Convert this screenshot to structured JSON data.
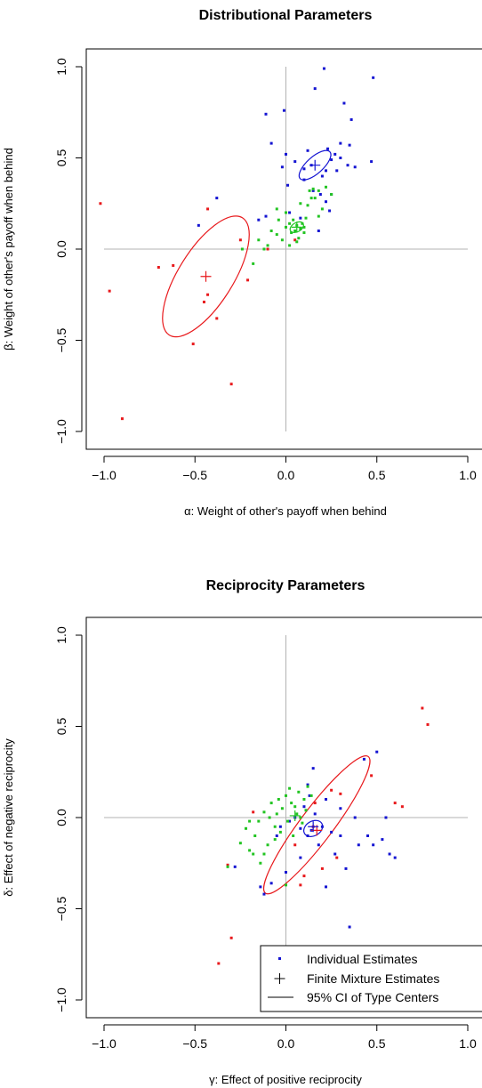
{
  "chart_data": [
    {
      "type": "scatter",
      "title": "Distributional Parameters",
      "xlabel": "α: Weight of other's payoff when behind",
      "ylabel": "β: Weight of other's payoff when behind",
      "xlim": [
        -1.0,
        1.0
      ],
      "ylim": [
        -1.0,
        1.0
      ],
      "xticks": [
        "−1.0",
        "−0.5",
        "0.0",
        "0.5",
        "1.0"
      ],
      "yticks": [
        "−1.0",
        "−0.5",
        "0.0",
        "0.5",
        "1.0"
      ],
      "colors": {
        "red": "#e8191c",
        "blue": "#1414d2",
        "green": "#22c422"
      },
      "reference_lines": {
        "x": 0,
        "y": 0
      },
      "series": [
        {
          "color": "red",
          "points": [
            [
              -1.02,
              0.25
            ],
            [
              -0.97,
              -0.23
            ],
            [
              -0.9,
              -0.93
            ],
            [
              -0.7,
              -0.1
            ],
            [
              -0.62,
              -0.09
            ],
            [
              -0.51,
              -0.52
            ],
            [
              -0.45,
              -0.29
            ],
            [
              -0.43,
              -0.25
            ],
            [
              -0.43,
              0.22
            ],
            [
              -0.38,
              -0.38
            ],
            [
              -0.3,
              -0.74
            ],
            [
              -0.25,
              0.05
            ],
            [
              -0.21,
              -0.17
            ],
            [
              -0.1,
              0.0
            ],
            [
              0.05,
              0.05
            ]
          ]
        },
        {
          "color": "blue",
          "points": [
            [
              -0.48,
              0.13
            ],
            [
              -0.38,
              0.28
            ],
            [
              -0.15,
              0.16
            ],
            [
              -0.11,
              0.18
            ],
            [
              -0.02,
              0.45
            ],
            [
              -0.01,
              0.76
            ],
            [
              0.0,
              0.52
            ],
            [
              0.01,
              0.35
            ],
            [
              0.05,
              0.48
            ],
            [
              0.1,
              0.38
            ],
            [
              0.1,
              0.44
            ],
            [
              0.12,
              0.54
            ],
            [
              0.14,
              0.46
            ],
            [
              0.16,
              0.88
            ],
            [
              0.19,
              0.3
            ],
            [
              0.2,
              0.4
            ],
            [
              0.21,
              0.99
            ],
            [
              0.23,
              0.55
            ],
            [
              0.25,
              0.49
            ],
            [
              0.27,
              0.52
            ],
            [
              0.3,
              0.5
            ],
            [
              0.3,
              0.58
            ],
            [
              0.32,
              0.8
            ],
            [
              0.34,
              0.46
            ],
            [
              0.35,
              0.57
            ],
            [
              0.36,
              0.71
            ],
            [
              0.38,
              0.45
            ],
            [
              0.47,
              0.48
            ],
            [
              0.48,
              0.94
            ],
            [
              -0.11,
              0.74
            ],
            [
              -0.08,
              0.58
            ],
            [
              0.25,
              0.3
            ],
            [
              0.22,
              0.43
            ],
            [
              0.28,
              0.43
            ],
            [
              0.02,
              0.2
            ],
            [
              0.08,
              0.17
            ],
            [
              0.18,
              0.1
            ],
            [
              0.24,
              0.21
            ],
            [
              0.22,
              0.26
            ],
            [
              0.15,
              0.32
            ]
          ]
        },
        {
          "color": "green",
          "points": [
            [
              -0.24,
              0.0
            ],
            [
              -0.18,
              -0.08
            ],
            [
              -0.15,
              0.05
            ],
            [
              -0.12,
              0.0
            ],
            [
              -0.08,
              0.1
            ],
            [
              -0.05,
              0.22
            ],
            [
              -0.04,
              0.16
            ],
            [
              -0.02,
              0.05
            ],
            [
              0.0,
              0.12
            ],
            [
              0.02,
              0.14
            ],
            [
              0.03,
              0.09
            ],
            [
              0.04,
              0.16
            ],
            [
              0.05,
              0.1
            ],
            [
              0.06,
              0.13
            ],
            [
              0.07,
              0.06
            ],
            [
              0.08,
              0.11
            ],
            [
              0.09,
              0.14
            ],
            [
              0.1,
              0.09
            ],
            [
              0.11,
              0.17
            ],
            [
              0.12,
              0.24
            ],
            [
              0.13,
              0.32
            ],
            [
              0.14,
              0.28
            ],
            [
              0.15,
              0.33
            ],
            [
              0.16,
              0.28
            ],
            [
              0.18,
              0.32
            ],
            [
              0.2,
              0.22
            ],
            [
              0.22,
              0.34
            ],
            [
              0.25,
              0.3
            ],
            [
              0.02,
              0.02
            ],
            [
              0.06,
              0.04
            ],
            [
              0.1,
              0.12
            ],
            [
              -0.1,
              0.02
            ],
            [
              0.0,
              0.2
            ],
            [
              0.18,
              0.18
            ],
            [
              0.08,
              0.25
            ],
            [
              -0.05,
              0.08
            ]
          ]
        }
      ],
      "mixture_estimates": [
        {
          "color": "red",
          "x": -0.44,
          "y": -0.15
        },
        {
          "color": "blue",
          "x": 0.16,
          "y": 0.46
        },
        {
          "color": "green",
          "x": 0.06,
          "y": 0.12
        }
      ],
      "ci_ellipses": [
        {
          "color": "red",
          "cx": -0.44,
          "cy": -0.15,
          "rx": 0.38,
          "ry": 0.15,
          "angle_deg": 58
        },
        {
          "color": "blue",
          "cx": 0.16,
          "cy": 0.46,
          "rx": 0.11,
          "ry": 0.045,
          "angle_deg": 42
        },
        {
          "color": "green",
          "cx": 0.06,
          "cy": 0.12,
          "rx": 0.04,
          "ry": 0.025,
          "angle_deg": 30
        }
      ]
    },
    {
      "type": "scatter",
      "title": "Reciprocity Parameters",
      "xlabel": "γ: Effect of positive reciprocity",
      "ylabel": "δ: Effect of negative reciprocity",
      "xlim": [
        -1.0,
        1.0
      ],
      "ylim": [
        -1.0,
        1.0
      ],
      "xticks": [
        "−1.0",
        "−0.5",
        "0.0",
        "0.5",
        "1.0"
      ],
      "yticks": [
        "−1.0",
        "−0.5",
        "0.0",
        "0.5",
        "1.0"
      ],
      "colors": {
        "red": "#e8191c",
        "blue": "#1414d2",
        "green": "#22c422"
      },
      "reference_lines": {
        "x": 0,
        "y": 0
      },
      "legend": {
        "position": "bottom-right",
        "entries": [
          "Individual Estimates",
          "Finite Mixture Estimates",
          "95% CI of Type Centers"
        ]
      },
      "series": [
        {
          "color": "red",
          "points": [
            [
              -0.37,
              -0.8
            ],
            [
              -0.3,
              -0.66
            ],
            [
              -0.32,
              -0.26
            ],
            [
              -0.18,
              0.03
            ],
            [
              0.08,
              -0.37
            ],
            [
              0.1,
              -0.32
            ],
            [
              0.15,
              -0.05
            ],
            [
              0.16,
              0.08
            ],
            [
              0.25,
              0.15
            ],
            [
              0.28,
              -0.22
            ],
            [
              0.3,
              0.13
            ],
            [
              0.47,
              0.23
            ],
            [
              0.6,
              0.08
            ],
            [
              0.64,
              0.06
            ],
            [
              0.75,
              0.6
            ],
            [
              0.78,
              0.51
            ],
            [
              0.2,
              -0.28
            ],
            [
              0.05,
              -0.15
            ]
          ]
        },
        {
          "color": "blue",
          "points": [
            [
              -0.28,
              -0.27
            ],
            [
              -0.14,
              -0.38
            ],
            [
              -0.12,
              -0.42
            ],
            [
              -0.08,
              -0.36
            ],
            [
              -0.05,
              -0.1
            ],
            [
              -0.03,
              -0.05
            ],
            [
              0.0,
              -0.3
            ],
            [
              0.02,
              -0.02
            ],
            [
              0.05,
              0.0
            ],
            [
              0.08,
              -0.06
            ],
            [
              0.1,
              0.06
            ],
            [
              0.12,
              -0.1
            ],
            [
              0.13,
              0.12
            ],
            [
              0.14,
              -0.07
            ],
            [
              0.15,
              0.27
            ],
            [
              0.16,
              0.02
            ],
            [
              0.18,
              -0.15
            ],
            [
              0.2,
              -0.05
            ],
            [
              0.22,
              -0.38
            ],
            [
              0.25,
              -0.08
            ],
            [
              0.27,
              -0.2
            ],
            [
              0.3,
              0.05
            ],
            [
              0.33,
              -0.28
            ],
            [
              0.35,
              -0.6
            ],
            [
              0.38,
              0.0
            ],
            [
              0.4,
              -0.15
            ],
            [
              0.43,
              0.32
            ],
            [
              0.45,
              -0.1
            ],
            [
              0.48,
              -0.15
            ],
            [
              0.5,
              0.36
            ],
            [
              0.53,
              -0.12
            ],
            [
              0.55,
              0.0
            ],
            [
              0.57,
              -0.2
            ],
            [
              0.6,
              -0.22
            ],
            [
              0.08,
              -0.22
            ],
            [
              0.12,
              0.18
            ],
            [
              0.22,
              0.1
            ],
            [
              0.3,
              -0.1
            ]
          ]
        },
        {
          "color": "green",
          "points": [
            [
              -0.32,
              -0.27
            ],
            [
              -0.25,
              -0.14
            ],
            [
              -0.22,
              -0.06
            ],
            [
              -0.2,
              -0.18
            ],
            [
              -0.18,
              -0.2
            ],
            [
              -0.17,
              -0.1
            ],
            [
              -0.15,
              -0.02
            ],
            [
              -0.14,
              -0.25
            ],
            [
              -0.12,
              0.03
            ],
            [
              -0.1,
              -0.15
            ],
            [
              -0.09,
              0.0
            ],
            [
              -0.08,
              0.08
            ],
            [
              -0.06,
              -0.05
            ],
            [
              -0.05,
              0.02
            ],
            [
              -0.04,
              0.1
            ],
            [
              -0.03,
              -0.08
            ],
            [
              -0.02,
              0.05
            ],
            [
              0.0,
              0.12
            ],
            [
              0.01,
              -0.02
            ],
            [
              0.02,
              0.16
            ],
            [
              0.03,
              0.08
            ],
            [
              0.04,
              -0.1
            ],
            [
              0.05,
              0.06
            ],
            [
              0.06,
              0.02
            ],
            [
              0.07,
              0.14
            ],
            [
              0.08,
              0.0
            ],
            [
              0.09,
              -0.03
            ],
            [
              0.1,
              0.1
            ],
            [
              0.12,
              0.17
            ],
            [
              0.14,
              0.12
            ],
            [
              0.0,
              -0.37
            ],
            [
              -0.12,
              -0.2
            ],
            [
              -0.06,
              -0.12
            ],
            [
              0.11,
              0.04
            ],
            [
              -0.2,
              -0.02
            ]
          ]
        }
      ],
      "mixture_estimates": [
        {
          "color": "red",
          "x": 0.17,
          "y": -0.07
        },
        {
          "color": "blue",
          "x": 0.15,
          "y": -0.05
        },
        {
          "color": "green",
          "x": 0.05,
          "y": 0.01
        }
      ],
      "ci_ellipses": [
        {
          "color": "red",
          "cx": 0.17,
          "cy": -0.04,
          "rx": 0.47,
          "ry": 0.09,
          "angle_deg": 53
        },
        {
          "color": "blue",
          "cx": 0.15,
          "cy": -0.06,
          "rx": 0.055,
          "ry": 0.04,
          "angle_deg": 30
        }
      ]
    }
  ]
}
